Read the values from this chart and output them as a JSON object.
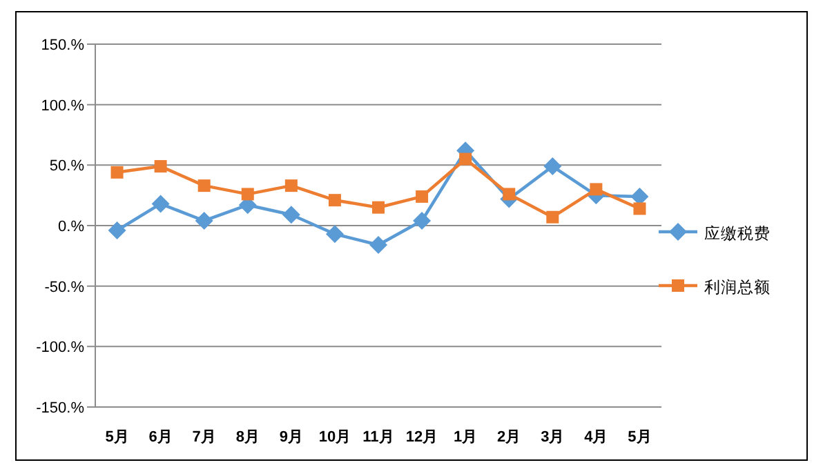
{
  "chart_data": {
    "type": "line",
    "categories": [
      "5月",
      "6月",
      "7月",
      "8月",
      "9月",
      "10月",
      "11月",
      "12月",
      "1月",
      "2月",
      "3月",
      "4月",
      "5月"
    ],
    "series": [
      {
        "name": "应缴税费",
        "color": "#5b9bd5",
        "marker": "diamond",
        "values": [
          -4,
          18,
          4,
          17,
          9,
          -7,
          -16,
          4,
          62,
          22,
          49,
          25,
          24
        ]
      },
      {
        "name": "利润总额",
        "color": "#ed7d31",
        "marker": "square",
        "values": [
          44,
          49,
          33,
          26,
          33,
          21,
          15,
          24,
          55,
          26,
          7,
          30,
          14
        ]
      }
    ],
    "ylim": [
      -150,
      150
    ],
    "yticks": [
      {
        "value": -150,
        "label": "-150.%"
      },
      {
        "value": -100,
        "label": "-100.%"
      },
      {
        "value": -50,
        "label": "-50.%"
      },
      {
        "value": 0,
        "label": "0.%"
      },
      {
        "value": 50,
        "label": "50.%"
      },
      {
        "value": 100,
        "label": "100.%"
      },
      {
        "value": 150,
        "label": "150.%"
      }
    ],
    "grid": "y",
    "legend": "right",
    "line_style": "solid"
  }
}
